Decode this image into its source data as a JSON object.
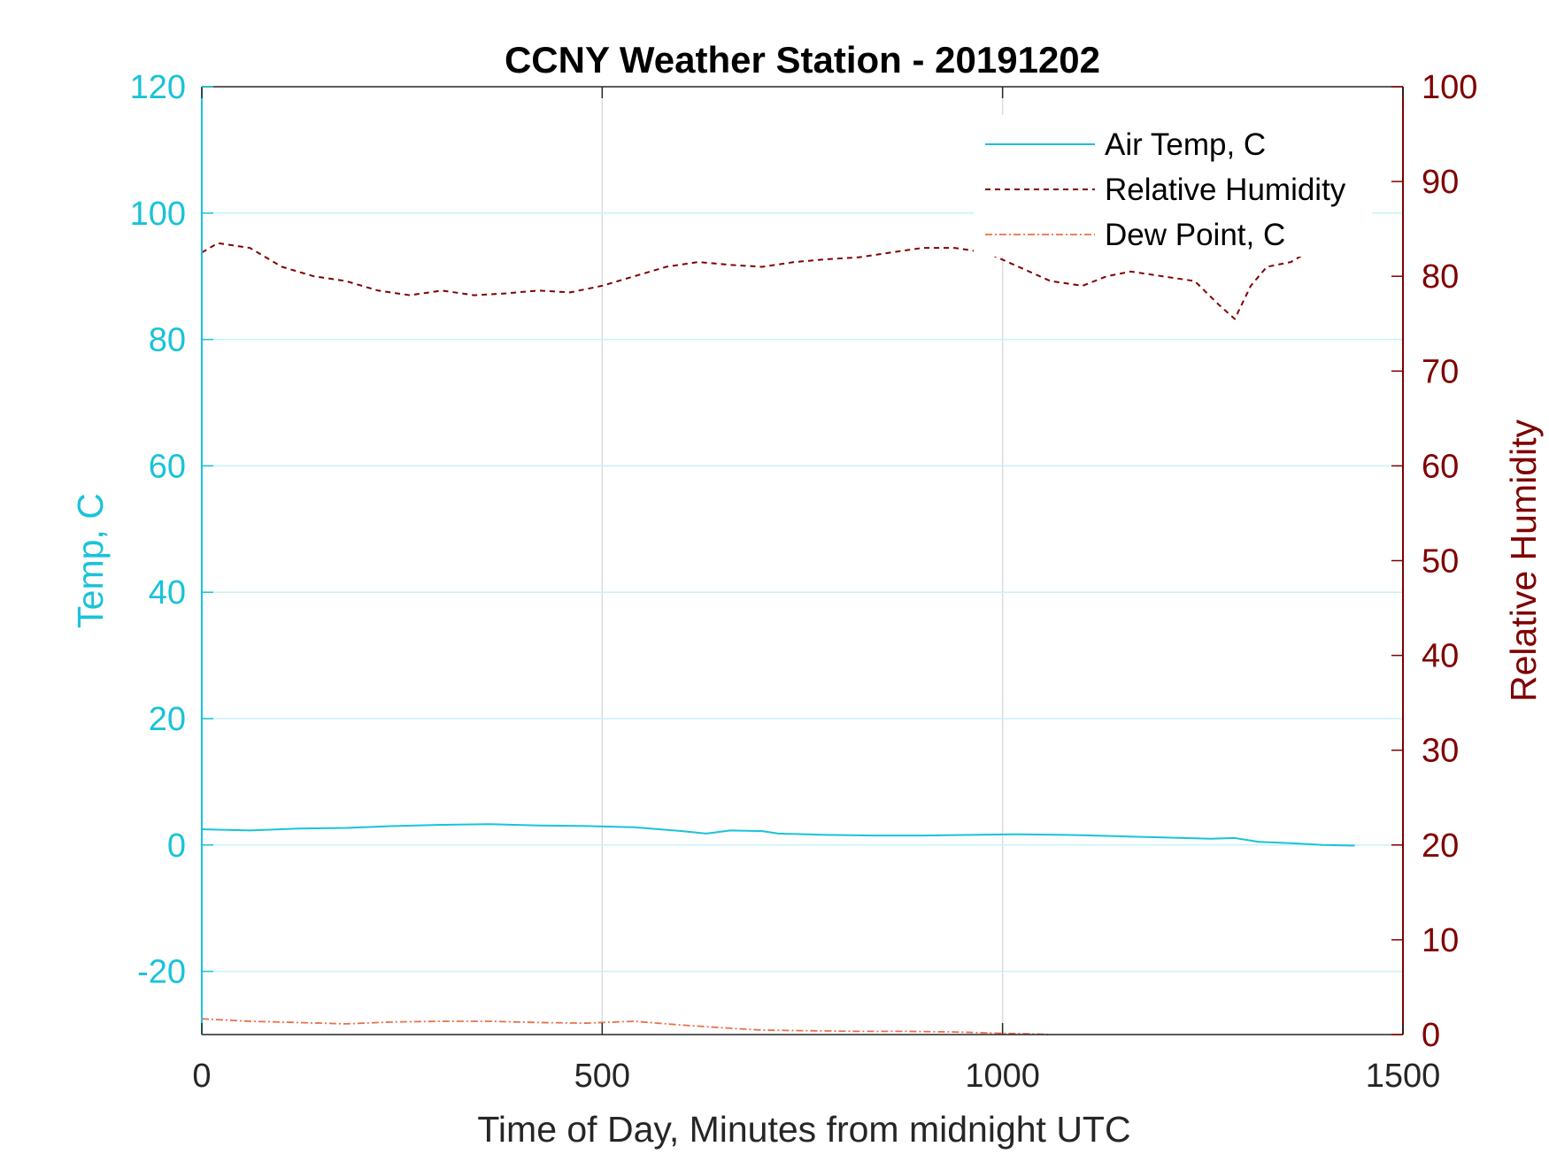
{
  "chart_data": {
    "type": "line",
    "title": "CCNY Weather Station - 20191202",
    "xlabel": "Time of Day, Minutes from midnight UTC",
    "ylabel_left": "Temp, C",
    "ylabel_right": "Relative Humidity",
    "xlim": [
      0,
      1500
    ],
    "ylim_left": [
      -30,
      120
    ],
    "ylim_right": [
      0,
      100
    ],
    "x_ticks": [
      "0",
      "500",
      "1000",
      "1500"
    ],
    "y_ticks_left": [
      "-20",
      "0",
      "20",
      "40",
      "60",
      "80",
      "100",
      "120"
    ],
    "y_ticks_right": [
      "0",
      "10",
      "20",
      "30",
      "40",
      "50",
      "60",
      "70",
      "80",
      "90",
      "100"
    ],
    "grid": true,
    "legend_position": "top-right",
    "colors": {
      "left_axis": "#19c3d9",
      "right_axis": "#800000",
      "dew_point": "#e8704a"
    },
    "series": [
      {
        "name": "Air Temp, C",
        "axis": "left",
        "style": "solid",
        "x": [
          0,
          60,
          120,
          180,
          240,
          300,
          360,
          420,
          480,
          540,
          600,
          630,
          660,
          700,
          720,
          780,
          840,
          900,
          960,
          1020,
          1080,
          1140,
          1200,
          1260,
          1290,
          1320,
          1360,
          1400,
          1440
        ],
        "y": [
          2.5,
          2.3,
          2.6,
          2.7,
          3.0,
          3.2,
          3.3,
          3.1,
          3.0,
          2.8,
          2.2,
          1.8,
          2.3,
          2.2,
          1.8,
          1.6,
          1.5,
          1.5,
          1.6,
          1.7,
          1.6,
          1.4,
          1.2,
          1.0,
          1.1,
          0.5,
          0.3,
          0.0,
          -0.1
        ]
      },
      {
        "name": "Relative Humidity",
        "axis": "right",
        "style": "dashed",
        "x": [
          0,
          20,
          60,
          100,
          140,
          180,
          220,
          260,
          300,
          340,
          380,
          420,
          460,
          500,
          540,
          580,
          620,
          660,
          700,
          740,
          780,
          820,
          860,
          900,
          940,
          980,
          1020,
          1060,
          1100,
          1130,
          1160,
          1200,
          1240,
          1270,
          1290,
          1310,
          1330,
          1360,
          1390,
          1410,
          1430,
          1445
        ],
        "y": [
          82.5,
          83.5,
          83.0,
          81.0,
          80.0,
          79.5,
          78.5,
          78.0,
          78.5,
          78.0,
          78.2,
          78.5,
          78.3,
          79.0,
          80.0,
          81.0,
          81.5,
          81.2,
          81.0,
          81.5,
          81.8,
          82.0,
          82.5,
          83.0,
          83.0,
          82.5,
          81.0,
          79.5,
          79.0,
          80.0,
          80.5,
          80.0,
          79.5,
          77.0,
          75.5,
          79.0,
          81.0,
          81.5,
          83.0,
          84.5,
          84.0,
          83.0
        ]
      },
      {
        "name": "Dew Point, C",
        "axis": "left",
        "style": "dashdot",
        "x": [
          0,
          60,
          120,
          180,
          240,
          300,
          360,
          420,
          480,
          540,
          600,
          660,
          700,
          760,
          820,
          880,
          940,
          1000,
          1040,
          1060
        ],
        "y": [
          -27.5,
          -27.9,
          -28.1,
          -28.3,
          -28.0,
          -27.9,
          -27.9,
          -28.1,
          -28.2,
          -27.9,
          -28.5,
          -29.0,
          -29.3,
          -29.4,
          -29.5,
          -29.5,
          -29.6,
          -29.8,
          -29.9,
          -30.0
        ]
      }
    ]
  }
}
